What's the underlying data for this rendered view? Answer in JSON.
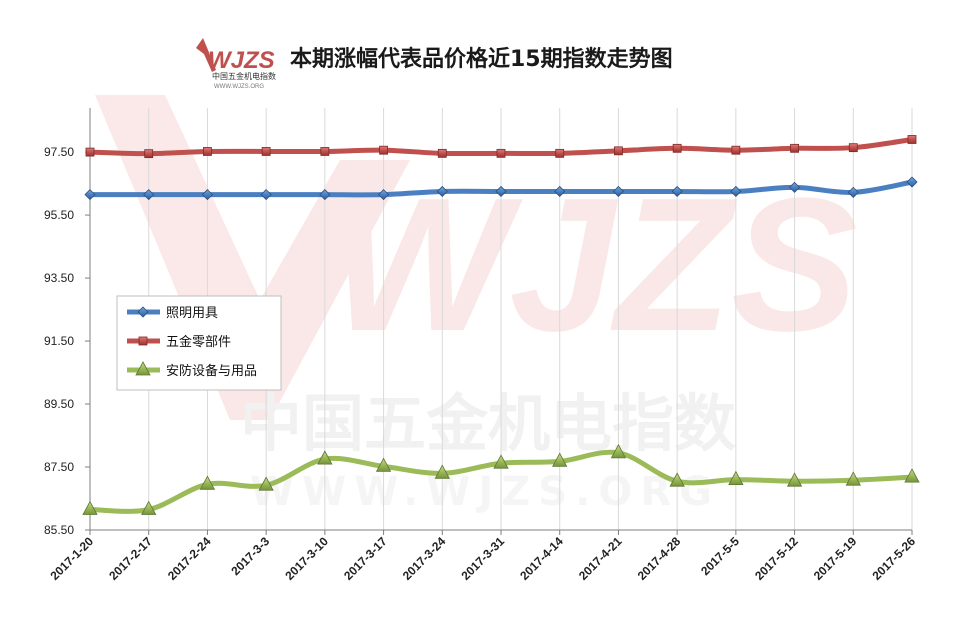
{
  "logo": {
    "brand": "WJZS",
    "tagline": "中国五金机电指数",
    "url": "WWW.WJZS.ORG"
  },
  "watermark": {
    "brand": "WJZS",
    "tagline": "中国五金机电指数",
    "url": "WWW.WJZS.ORG"
  },
  "colors": {
    "blue": "#4a7fc1",
    "red": "#c0504d",
    "green": "#9bbb59",
    "grid": "#d9d9d9"
  },
  "chart_data": {
    "type": "line",
    "title": "本期涨幅代表品价格近15期指数走势图",
    "categories": [
      "2017-1-20",
      "2017-2-17",
      "2017-2-24",
      "2017-3-3",
      "2017-3-10",
      "2017-3-17",
      "2017-3-24",
      "2017-3-31",
      "2017-4-14",
      "2017-4-21",
      "2017-4-28",
      "2017-5-5",
      "2017-5-12",
      "2017-5-19",
      "2017-5-26"
    ],
    "y_ticks": [
      "85.50",
      "87.50",
      "89.50",
      "91.50",
      "93.50",
      "95.50",
      "97.50"
    ],
    "ylim": [
      85.5,
      98.9
    ],
    "grid": "vertical",
    "legend_position": "left-middle",
    "series": [
      {
        "name": "照明用具",
        "color": "#4a7fc1",
        "marker": "diamond",
        "values": [
          96.15,
          96.15,
          96.15,
          96.15,
          96.15,
          96.15,
          96.25,
          96.25,
          96.25,
          96.25,
          96.25,
          96.25,
          96.38,
          96.22,
          96.55
        ]
      },
      {
        "name": "五金零部件",
        "color": "#c0504d",
        "marker": "square",
        "values": [
          97.5,
          97.45,
          97.52,
          97.52,
          97.52,
          97.56,
          97.46,
          97.46,
          97.46,
          97.54,
          97.62,
          97.56,
          97.62,
          97.64,
          97.9
        ]
      },
      {
        "name": "安防设备与用品",
        "color": "#9bbb59",
        "marker": "triangle",
        "values": [
          86.15,
          86.15,
          86.95,
          86.92,
          87.75,
          87.52,
          87.3,
          87.62,
          87.68,
          87.95,
          87.05,
          87.1,
          87.05,
          87.08,
          87.18
        ]
      }
    ]
  }
}
